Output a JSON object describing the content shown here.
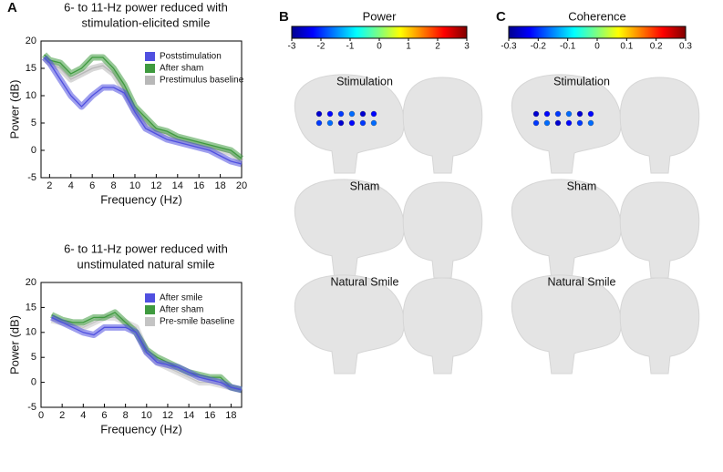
{
  "chart_data": [
    {
      "type": "line",
      "panel": "A",
      "title": [
        "6- to 11-Hz power reduced with",
        "stimulation-elicited smile"
      ],
      "x_label": "Frequency (Hz)",
      "y_label": "Power (dB)",
      "x": [
        1.5,
        2,
        3,
        4,
        5,
        6,
        7,
        8,
        9,
        10,
        11,
        12,
        13,
        14,
        15,
        16,
        17,
        18,
        19,
        20
      ],
      "series": [
        {
          "name": "Poststimulation",
          "color": "#5050e0",
          "values": [
            17,
            16,
            13,
            10,
            8,
            10,
            11.5,
            11.5,
            10.5,
            7,
            4,
            3,
            2,
            1.5,
            1,
            0.5,
            0,
            -1,
            -2,
            -2.5
          ]
        },
        {
          "name": "After sham",
          "color": "#3f9a3f",
          "values": [
            17.5,
            16.5,
            16,
            14,
            15,
            17,
            17,
            15,
            12,
            8,
            6,
            4,
            3.5,
            2.5,
            2,
            1.5,
            1,
            0.5,
            0,
            -1.5
          ]
        },
        {
          "name": "Prestimulus baseline",
          "color": "#b8b8b8",
          "values": [
            17,
            16,
            15,
            13,
            14,
            15,
            15.5,
            14,
            11,
            7,
            5,
            3.5,
            3,
            2,
            1.5,
            1,
            0.5,
            0,
            -0.5,
            -2
          ]
        }
      ],
      "xlim": [
        1.2,
        20
      ],
      "xticks": [
        2,
        4,
        6,
        8,
        10,
        12,
        14,
        16,
        18,
        20
      ],
      "ylim": [
        -5,
        20
      ],
      "yticks": [
        -5,
        0,
        5,
        10,
        15,
        20
      ],
      "legend": "top-right"
    },
    {
      "type": "line",
      "title": [
        "6- to 11-Hz power reduced with",
        "unstimulated natural smile"
      ],
      "x_label": "Frequency (Hz)",
      "y_label": "Power (dB)",
      "x": [
        1,
        2,
        3,
        4,
        5,
        6,
        7,
        8,
        9,
        10,
        11,
        12,
        13,
        14,
        15,
        16,
        17,
        18,
        19
      ],
      "series": [
        {
          "name": "After smile",
          "color": "#5050e0",
          "values": [
            13,
            12,
            11,
            10,
            9.5,
            11,
            11,
            11,
            10,
            6,
            4,
            3.5,
            3,
            2,
            1,
            0.5,
            0,
            -1,
            -1.5
          ]
        },
        {
          "name": "After sham",
          "color": "#3f9a3f",
          "values": [
            13.5,
            12.5,
            12,
            12,
            13,
            13,
            14,
            12,
            10,
            6.5,
            5,
            4,
            3,
            2,
            1.5,
            1,
            1,
            -1,
            -1.5
          ]
        },
        {
          "name": "Pre-smile baseline",
          "color": "#c4c4c4",
          "values": [
            12.5,
            12,
            11.5,
            11,
            12,
            13,
            13,
            12,
            11,
            6,
            4,
            3,
            2,
            1,
            0,
            0,
            -0.5,
            -1,
            -1.5
          ]
        }
      ],
      "xlim": [
        0,
        19
      ],
      "xticks": [
        0,
        2,
        4,
        6,
        8,
        10,
        12,
        14,
        16,
        18
      ],
      "ylim": [
        -5,
        20
      ],
      "yticks": [
        -5,
        0,
        5,
        10,
        15,
        20
      ],
      "legend": "top-right"
    },
    {
      "type": "colorbar",
      "panel": "B",
      "title": "Power",
      "xlim": [
        -3,
        3
      ],
      "xticks": [
        -3,
        -2,
        -1,
        0,
        1,
        2,
        3
      ],
      "rows": [
        "Stimulation",
        "Sham",
        "Natural Smile"
      ]
    },
    {
      "type": "colorbar",
      "panel": "C",
      "title": "Coherence",
      "xlim": [
        -0.3,
        0.3
      ],
      "xticks": [
        -0.3,
        -0.2,
        -0.1,
        0,
        0.1,
        0.2,
        0.3
      ],
      "rows": [
        "Stimulation",
        "Sham",
        "Natural Smile"
      ]
    }
  ]
}
